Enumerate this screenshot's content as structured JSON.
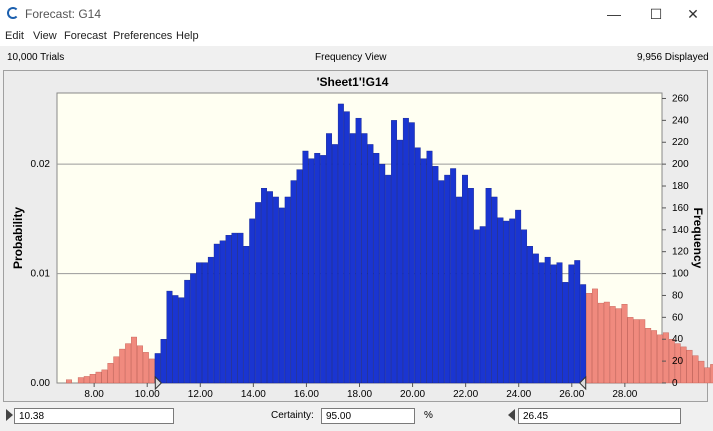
{
  "window": {
    "title": "Forecast: G14",
    "minimize_icon": "—",
    "maximize_icon": "☐",
    "close_icon": "✕"
  },
  "menu": [
    "Edit",
    "View",
    "Forecast",
    "Preferences",
    "Help"
  ],
  "info": {
    "trials": "10,000 Trials",
    "view": "Frequency View",
    "displayed": "9,956 Displayed"
  },
  "certainty": {
    "left_value": "10.38",
    "label": "Certainty:",
    "value": "95.00",
    "unit": "%",
    "right_value": "26.45"
  },
  "colors": {
    "tail": "#f08a7e",
    "body": "#1a35d1",
    "plot_bg": "#fffff2"
  },
  "chart_data": {
    "type": "bar",
    "title": "'Sheet1'!G14",
    "ylabel": "Probability",
    "y2label": "Frequency",
    "xlim": [
      6.6,
      29.4
    ],
    "ylim": [
      0,
      265
    ],
    "x_ticks": [
      "8.00",
      "10.00",
      "12.00",
      "14.00",
      "16.00",
      "18.00",
      "20.00",
      "22.00",
      "24.00",
      "26.00",
      "28.00"
    ],
    "x_tick_values": [
      8,
      10,
      12,
      14,
      16,
      18,
      20,
      22,
      24,
      26,
      28
    ],
    "y_left_ticks": [
      "0.00",
      "0.01",
      "0.02"
    ],
    "y_left_tick_values": [
      0,
      100,
      200
    ],
    "y_right_ticks": [
      "0",
      "20",
      "40",
      "60",
      "80",
      "100",
      "120",
      "140",
      "160",
      "180",
      "200",
      "220",
      "240",
      "260"
    ],
    "y_right_tick_values": [
      0,
      20,
      40,
      60,
      80,
      100,
      120,
      140,
      160,
      180,
      200,
      220,
      240,
      260
    ],
    "bin_start": 6.95,
    "bin_width": 0.2227,
    "certainty_range": [
      10.38,
      26.45
    ],
    "values": [
      3,
      0,
      5,
      6,
      8,
      10,
      12,
      18,
      24,
      31,
      36,
      42,
      34,
      28,
      22,
      27,
      40,
      84,
      80,
      78,
      94,
      100,
      110,
      110,
      115,
      127,
      130,
      135,
      137,
      137,
      125,
      150,
      165,
      178,
      175,
      170,
      160,
      170,
      185,
      195,
      212,
      205,
      210,
      208,
      228,
      218,
      255,
      248,
      228,
      242,
      228,
      218,
      210,
      200,
      190,
      240,
      222,
      242,
      238,
      215,
      205,
      212,
      198,
      185,
      190,
      196,
      170,
      190,
      178,
      140,
      143,
      178,
      170,
      151,
      148,
      150,
      158,
      140,
      125,
      118,
      110,
      115,
      108,
      110,
      92,
      108,
      112,
      90,
      82,
      86,
      73,
      74,
      70,
      68,
      72,
      60,
      58,
      58,
      50,
      48,
      44,
      46,
      40,
      36,
      33,
      30,
      25,
      20,
      14,
      17,
      12,
      14,
      14,
      12,
      10,
      8
    ]
  }
}
